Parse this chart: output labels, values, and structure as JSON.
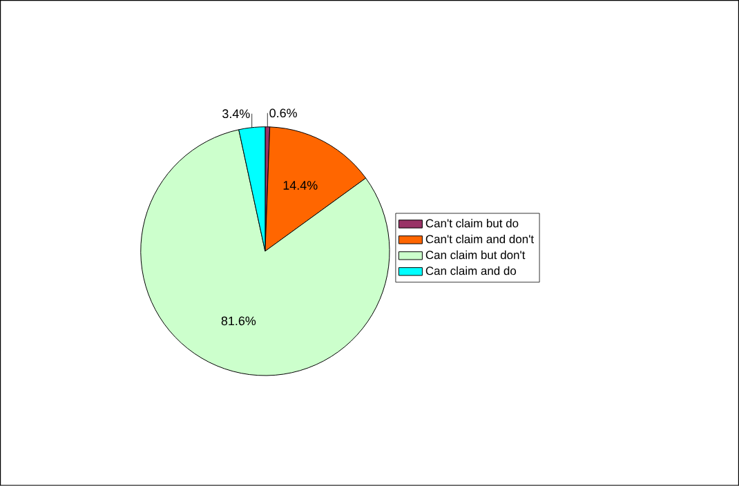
{
  "chart_data": {
    "type": "pie",
    "categories": [
      "Can't claim but do",
      "Can't claim and don't",
      "Can claim but don't",
      "Can claim and do"
    ],
    "values": [
      0.6,
      14.4,
      81.6,
      3.4
    ],
    "value_labels": [
      "0.6%",
      "14.4%",
      "81.6%",
      "3.4%"
    ],
    "colors": [
      "#993366",
      "#ff6600",
      "#ccffcc",
      "#00ffff"
    ],
    "legend": "right"
  }
}
